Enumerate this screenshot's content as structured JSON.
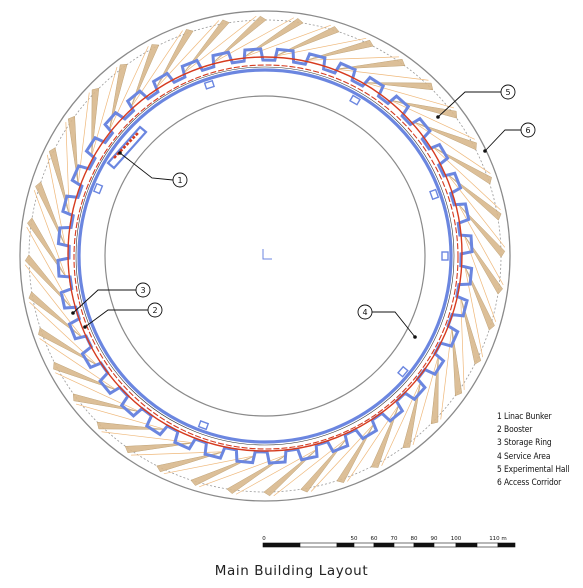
{
  "title": "Main Building Layout",
  "legend": [
    {
      "num": "1",
      "label": "Linac Bunker"
    },
    {
      "num": "2",
      "label": "Booster"
    },
    {
      "num": "3",
      "label": "Storage Ring"
    },
    {
      "num": "4",
      "label": "Service Area"
    },
    {
      "num": "5",
      "label": "Experimental Hall"
    },
    {
      "num": "6",
      "label": "Access Corridor"
    }
  ],
  "callouts": [
    "1",
    "2",
    "3",
    "4",
    "5",
    "6"
  ],
  "scale_bar": {
    "ticks": [
      "0",
      "50",
      "60",
      "70",
      "80",
      "90",
      "100",
      "110 m"
    ]
  },
  "colors": {
    "storage_ring": "#6b86e0",
    "booster": "#d63b1f",
    "beamlines": "#e6c8a0",
    "outline": "#7a7a7a"
  }
}
